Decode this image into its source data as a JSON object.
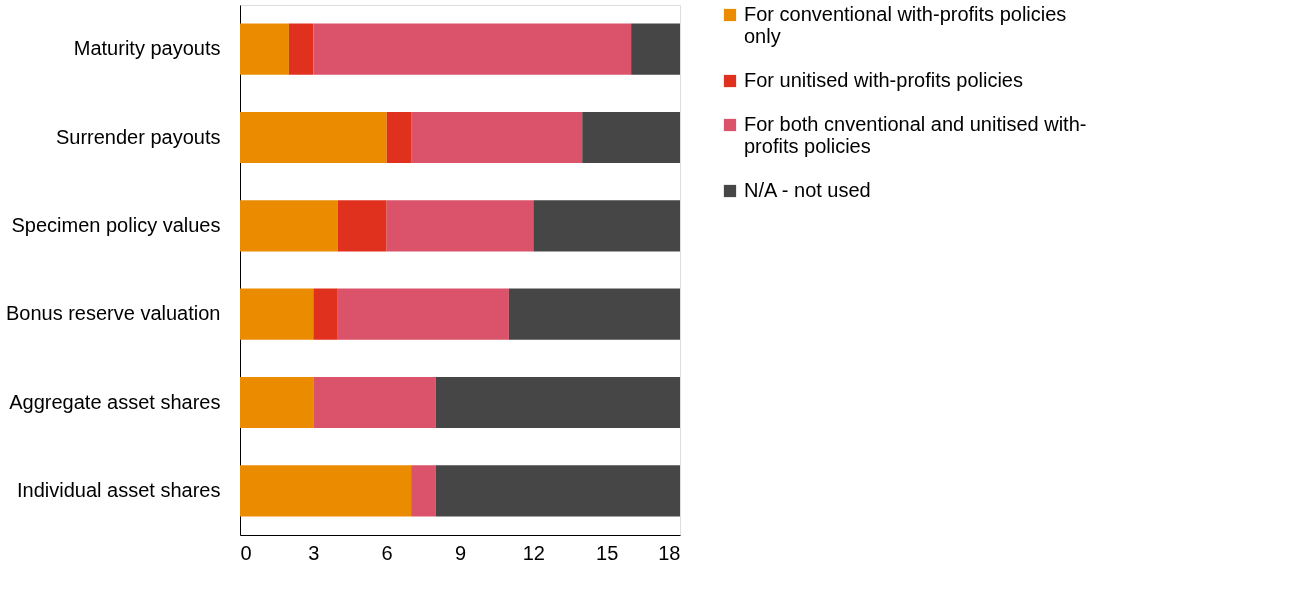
{
  "chart_data": {
    "type": "bar",
    "orientation": "horizontal",
    "stacked": true,
    "categories": [
      "Maturity payouts",
      "Surrender payouts",
      "Specimen policy values",
      "Bonus reserve valuation",
      "Aggregate asset shares",
      "Individual asset shares"
    ],
    "series": [
      {
        "name": "For conventional with-profits policies only",
        "color": "#eb8c00",
        "values": [
          2,
          6,
          4,
          3,
          3,
          7
        ]
      },
      {
        "name": "For unitised with-profits policies",
        "color": "#e0301e",
        "values": [
          1,
          1,
          2,
          1,
          0,
          0
        ]
      },
      {
        "name": "For both cnventional and unitised with-profits policies",
        "color": "#db536a",
        "values": [
          13,
          7,
          6,
          7,
          5,
          1
        ]
      },
      {
        "name": "N/A - not used",
        "color": "#464646",
        "values": [
          2,
          4,
          6,
          7,
          10,
          10
        ]
      }
    ],
    "xlim": [
      0,
      18
    ],
    "xticks": [
      0,
      3,
      6,
      9,
      12,
      15,
      18
    ],
    "grid": false,
    "legend": "right"
  }
}
